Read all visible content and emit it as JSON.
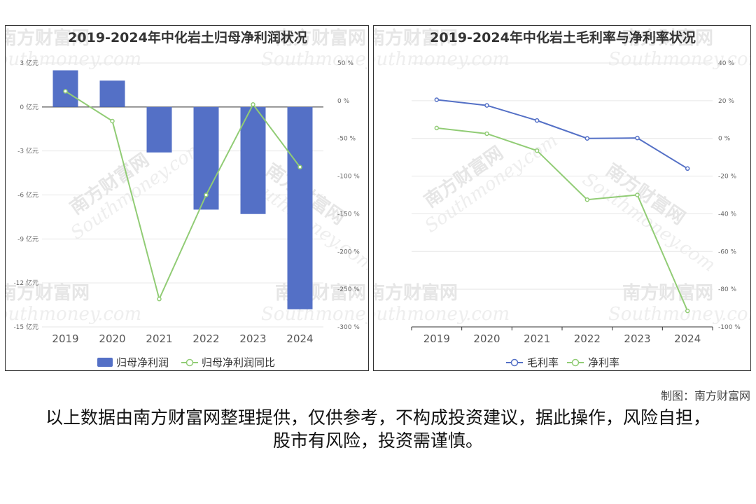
{
  "chart_data": [
    {
      "type": "bar",
      "title": "2019-2024年中化岩土归母净利润状况",
      "categories": [
        "2019",
        "2020",
        "2021",
        "2022",
        "2023",
        "2024"
      ],
      "series": [
        {
          "name": "归母净利润",
          "type": "bar",
          "axis": "left",
          "color": "#5470c6",
          "values": [
            2.5,
            1.8,
            -3.1,
            -7.0,
            -7.3,
            -13.8
          ]
        },
        {
          "name": "归母净利润同比",
          "type": "line",
          "axis": "right",
          "color": "#91cc75",
          "values": [
            12.5,
            -27,
            -263,
            -125,
            -5,
            -88
          ]
        }
      ],
      "yleft": {
        "ticks": [
          3,
          0,
          -3,
          -6,
          -9,
          -12,
          -15
        ],
        "tick_labels": [
          "3 亿元",
          "0 亿元",
          "-3 亿元",
          "-6 亿元",
          "-9 亿元",
          "-12 亿元",
          "-15 亿元"
        ],
        "min": -15,
        "max": 3
      },
      "yright": {
        "ticks": [
          50,
          0,
          -50,
          -100,
          -150,
          -200,
          -250,
          -300
        ],
        "tick_labels": [
          "50 %",
          "0 %",
          "-50 %",
          "-100 %",
          "-150 %",
          "-200 %",
          "-250 %",
          "-300 %"
        ],
        "min": -300,
        "max": 50
      },
      "legend_position": "bottom",
      "grid": true
    },
    {
      "type": "line",
      "title": "2019-2024年中化岩土毛利率与净利率状况",
      "categories": [
        "2019",
        "2020",
        "2021",
        "2022",
        "2023",
        "2024"
      ],
      "series": [
        {
          "name": "毛利率",
          "color": "#5470c6",
          "values": [
            20.5,
            17.5,
            9.5,
            0,
            0.2,
            -16
          ]
        },
        {
          "name": "净利率",
          "color": "#91cc75",
          "values": [
            5.5,
            2.5,
            -6.5,
            -32.5,
            -30,
            -91.5
          ]
        }
      ],
      "yright": {
        "ticks": [
          40,
          20,
          0,
          -20,
          -40,
          -60,
          -80,
          -100
        ],
        "tick_labels": [
          "40 %",
          "20 %",
          "0 %",
          "-20 %",
          "-40 %",
          "-60 %",
          "-80 %",
          "-100 %"
        ],
        "min": -100,
        "max": 40
      },
      "legend_position": "bottom",
      "grid": true
    }
  ],
  "watermark": {
    "cn": "南方财富网",
    "en": "Southmoney.com"
  },
  "credit": "制图：南方财富网",
  "disclaimer": "以上数据由南方财富网整理提供，仅供参考，不构成投资建议，据此操作，风险自担，股市有风险，投资需谨慎。"
}
